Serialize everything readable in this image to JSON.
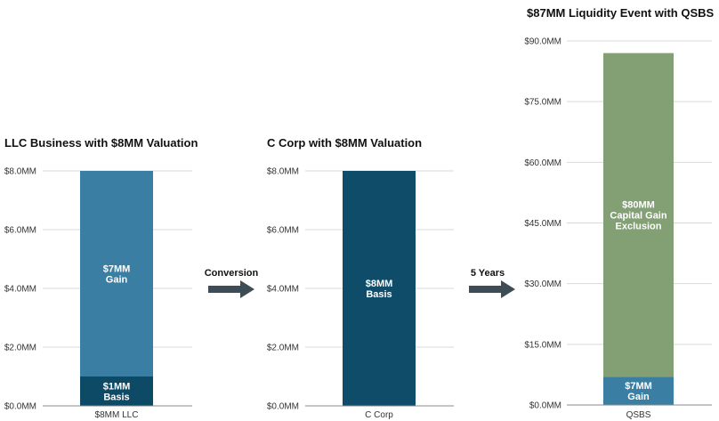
{
  "colors": {
    "llc_gain": "#3a7fa3",
    "llc_basis": "#0d4a66",
    "ccorp_basis": "#0f4c6a",
    "qsbs_exclusion": "#82a074",
    "qsbs_gain": "#3a7fa3",
    "arrow": "#3e4c55"
  },
  "arrows": [
    {
      "label": "Conversion",
      "icon": "right-arrow-icon"
    },
    {
      "label": "5 Years",
      "icon": "right-arrow-icon"
    }
  ],
  "chart_data": [
    {
      "type": "bar",
      "stacked": true,
      "title": "LLC Business with $8MM Valuation",
      "categories": [
        "$8MM LLC"
      ],
      "ylim": [
        0,
        8
      ],
      "yticks": [
        0,
        2,
        4,
        6,
        8
      ],
      "ytick_labels": [
        "$0.0MM",
        "$2.0MM",
        "$4.0MM",
        "$6.0MM",
        "$8.0MM"
      ],
      "grid": true,
      "series": [
        {
          "values": [
            1
          ],
          "label_lines": [
            "$1MM",
            "Basis"
          ],
          "color": "#0d4a66"
        },
        {
          "values": [
            7
          ],
          "label_lines": [
            "$7MM",
            "Gain"
          ],
          "color": "#3a7fa3"
        }
      ]
    },
    {
      "type": "bar",
      "stacked": true,
      "title": "C Corp with $8MM Valuation",
      "categories": [
        "C Corp"
      ],
      "ylim": [
        0,
        8
      ],
      "yticks": [
        0,
        2,
        4,
        6,
        8
      ],
      "ytick_labels": [
        "$0.0MM",
        "$2.0MM",
        "$4.0MM",
        "$6.0MM",
        "$8.0MM"
      ],
      "grid": true,
      "series": [
        {
          "values": [
            8
          ],
          "label_lines": [
            "$8MM",
            "Basis"
          ],
          "color": "#0f4c6a"
        }
      ]
    },
    {
      "type": "bar",
      "stacked": true,
      "title": "$87MM Liquidity Event with QSBS",
      "categories": [
        "QSBS"
      ],
      "ylim": [
        0,
        90
      ],
      "yticks": [
        0,
        15,
        30,
        45,
        60,
        75,
        90
      ],
      "ytick_labels": [
        "$0.0MM",
        "$15.0MM",
        "$30.0MM",
        "$45.0MM",
        "$60.0MM",
        "$75.0MM",
        "$90.0MM"
      ],
      "grid": true,
      "series": [
        {
          "values": [
            7
          ],
          "label_lines": [
            "$7MM",
            "Gain"
          ],
          "color": "#3a7fa3"
        },
        {
          "values": [
            80
          ],
          "label_lines": [
            "$80MM",
            "Capital Gain",
            "Exclusion"
          ],
          "color": "#82a074"
        }
      ]
    }
  ]
}
